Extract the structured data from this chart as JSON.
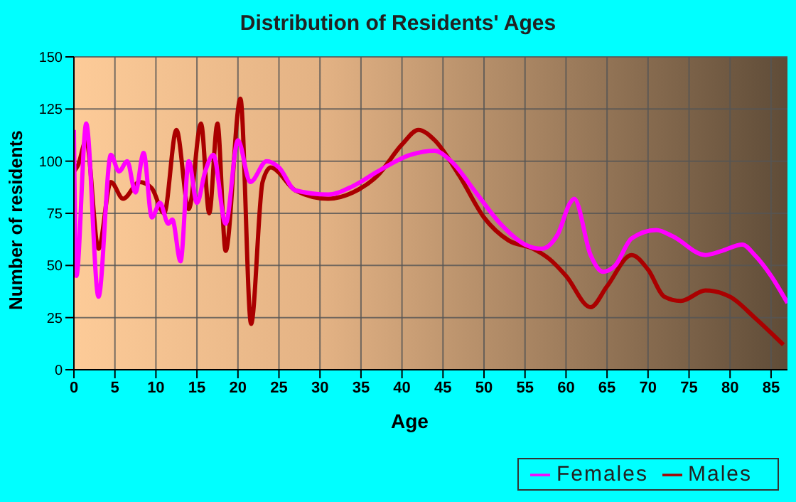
{
  "chart_data": {
    "type": "line",
    "title": "Distribution of Residents' Ages",
    "xlabel": "Age",
    "ylabel": "Number of residents",
    "xlim": [
      0,
      87
    ],
    "xticks": [
      0,
      5,
      10,
      15,
      20,
      25,
      30,
      35,
      40,
      45,
      50,
      55,
      60,
      65,
      70,
      75,
      80,
      85
    ],
    "ylim": [
      0,
      150
    ],
    "yticks": [
      0,
      25,
      50,
      75,
      100,
      125,
      150
    ],
    "grid": true,
    "legend": "bottom right",
    "marker": "none",
    "series": [
      {
        "name": "Males",
        "color": "#aa0000",
        "x": [
          0,
          0.5,
          1.5,
          3,
          4.5,
          6,
          8,
          9.5,
          11,
          12.5,
          14,
          15.5,
          16.5,
          17.5,
          18.5,
          20.3,
          21.6,
          23,
          24,
          27,
          31,
          34,
          37,
          40,
          42,
          44,
          47,
          50,
          53,
          56,
          58,
          60,
          63,
          65,
          68,
          70,
          72,
          74,
          77,
          80,
          83,
          86.5
        ],
        "values": [
          95,
          98,
          110,
          58,
          90,
          82,
          90,
          87,
          75,
          115,
          77,
          118,
          75,
          118,
          57,
          130,
          22,
          90,
          97,
          86,
          82,
          85,
          93,
          108,
          115,
          110,
          93,
          73,
          62,
          58,
          53,
          45,
          30,
          40,
          55,
          48,
          35,
          33,
          38,
          35,
          25,
          12
        ]
      },
      {
        "name": "Females",
        "color": "#ff00ff",
        "x": [
          0,
          0.3,
          1.5,
          3,
          4.5,
          5.5,
          6.5,
          7.5,
          8.5,
          9.5,
          10.5,
          11.5,
          12,
          13,
          14,
          15,
          16,
          17,
          18.5,
          20,
          21.5,
          23.5,
          25,
          27,
          31,
          34,
          37,
          41,
          44,
          46,
          49,
          52,
          55,
          57,
          59,
          60.5,
          61,
          63,
          64.5,
          66,
          68,
          71,
          73,
          77,
          79,
          81.5,
          83,
          85,
          87
        ],
        "values": [
          115,
          45,
          118,
          35,
          103,
          95,
          100,
          85,
          104,
          73,
          80,
          70,
          72,
          52,
          100,
          80,
          95,
          103,
          70,
          110,
          90,
          100,
          97,
          86,
          84,
          88,
          95,
          103,
          105,
          100,
          85,
          70,
          60,
          58,
          65,
          80,
          82,
          55,
          47,
          50,
          63,
          67,
          64,
          55,
          57,
          60,
          55,
          45,
          32
        ]
      }
    ]
  }
}
